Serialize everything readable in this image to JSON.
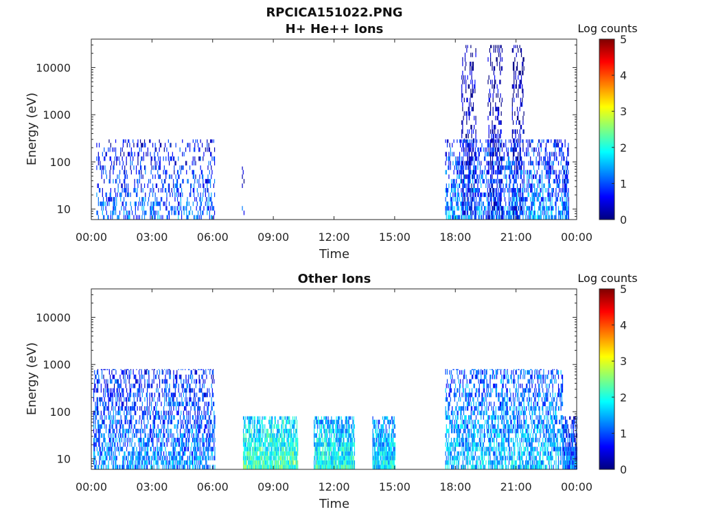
{
  "figure_title": "RPCICA151022.PNG",
  "chart_data": [
    {
      "type": "heatmap",
      "title": "H+ He++ Ions",
      "xlabel": "Time",
      "ylabel": "Energy (eV)",
      "y_scale": "log",
      "ylim": [
        6,
        40000
      ],
      "xlim": [
        0,
        24
      ],
      "xticks": [
        {
          "v": 0,
          "label": "00:00"
        },
        {
          "v": 3,
          "label": "03:00"
        },
        {
          "v": 6,
          "label": "06:00"
        },
        {
          "v": 9,
          "label": "09:00"
        },
        {
          "v": 12,
          "label": "12:00"
        },
        {
          "v": 15,
          "label": "15:00"
        },
        {
          "v": 18,
          "label": "18:00"
        },
        {
          "v": 21,
          "label": "21:00"
        },
        {
          "v": 24,
          "label": "00:00"
        }
      ],
      "yticks": [
        {
          "v": 10,
          "label": "10"
        },
        {
          "v": 100,
          "label": "100"
        },
        {
          "v": 1000,
          "label": "1000"
        },
        {
          "v": 10000,
          "label": "10000"
        }
      ],
      "colorbar": {
        "label": "Log counts",
        "min": 0,
        "max": 5,
        "ticks": [
          "0",
          "1",
          "2",
          "3",
          "4",
          "5"
        ]
      },
      "regions": [
        {
          "t0": 0.25,
          "t1": 6.1,
          "e_lo": 6,
          "e_hi": 300,
          "level": 1.1,
          "density": 0.35
        },
        {
          "t0": 7.45,
          "t1": 7.55,
          "e_lo": 6,
          "e_hi": 80,
          "level": 0.8,
          "density": 0.3
        },
        {
          "t0": 17.5,
          "t1": 23.6,
          "e_lo": 6,
          "e_hi": 300,
          "level": 1.3,
          "density": 0.55
        },
        {
          "t0": 18.3,
          "t1": 19.0,
          "e_lo": 6,
          "e_hi": 30000,
          "level": 0.6,
          "density": 0.45
        },
        {
          "t0": 19.6,
          "t1": 20.3,
          "e_lo": 6,
          "e_hi": 30000,
          "level": 0.6,
          "density": 0.45
        },
        {
          "t0": 20.8,
          "t1": 21.4,
          "e_lo": 6,
          "e_hi": 30000,
          "level": 0.6,
          "density": 0.45
        },
        {
          "t0": 23.3,
          "t1": 23.6,
          "e_lo": 6,
          "e_hi": 100,
          "level": 1.0,
          "density": 0.4
        }
      ]
    },
    {
      "type": "heatmap",
      "title": "Other Ions",
      "xlabel": "Time",
      "ylabel": "Energy (eV)",
      "y_scale": "log",
      "ylim": [
        6,
        40000
      ],
      "xlim": [
        0,
        24
      ],
      "xticks": [
        {
          "v": 0,
          "label": "00:00"
        },
        {
          "v": 3,
          "label": "03:00"
        },
        {
          "v": 6,
          "label": "06:00"
        },
        {
          "v": 9,
          "label": "09:00"
        },
        {
          "v": 12,
          "label": "12:00"
        },
        {
          "v": 15,
          "label": "15:00"
        },
        {
          "v": 18,
          "label": "18:00"
        },
        {
          "v": 21,
          "label": "21:00"
        },
        {
          "v": 24,
          "label": "00:00"
        }
      ],
      "yticks": [
        {
          "v": 10,
          "label": "10"
        },
        {
          "v": 100,
          "label": "100"
        },
        {
          "v": 1000,
          "label": "1000"
        },
        {
          "v": 10000,
          "label": "10000"
        }
      ],
      "colorbar": {
        "label": "Log counts",
        "min": 0,
        "max": 5,
        "ticks": [
          "0",
          "1",
          "2",
          "3",
          "4",
          "5"
        ]
      },
      "regions": [
        {
          "t0": 0.1,
          "t1": 6.1,
          "e_lo": 6,
          "e_hi": 800,
          "level": 1.3,
          "density": 0.6
        },
        {
          "t0": 7.5,
          "t1": 10.2,
          "e_lo": 6,
          "e_hi": 80,
          "level": 2.2,
          "density": 1.0
        },
        {
          "t0": 11.0,
          "t1": 13.0,
          "e_lo": 6,
          "e_hi": 80,
          "level": 2.0,
          "density": 1.0
        },
        {
          "t0": 13.9,
          "t1": 15.0,
          "e_lo": 6,
          "e_hi": 80,
          "level": 1.8,
          "density": 1.0
        },
        {
          "t0": 17.5,
          "t1": 23.3,
          "e_lo": 6,
          "e_hi": 800,
          "level": 1.6,
          "density": 0.65
        },
        {
          "t0": 23.3,
          "t1": 24.0,
          "e_lo": 6,
          "e_hi": 80,
          "level": 1.2,
          "density": 1.0
        }
      ]
    }
  ]
}
